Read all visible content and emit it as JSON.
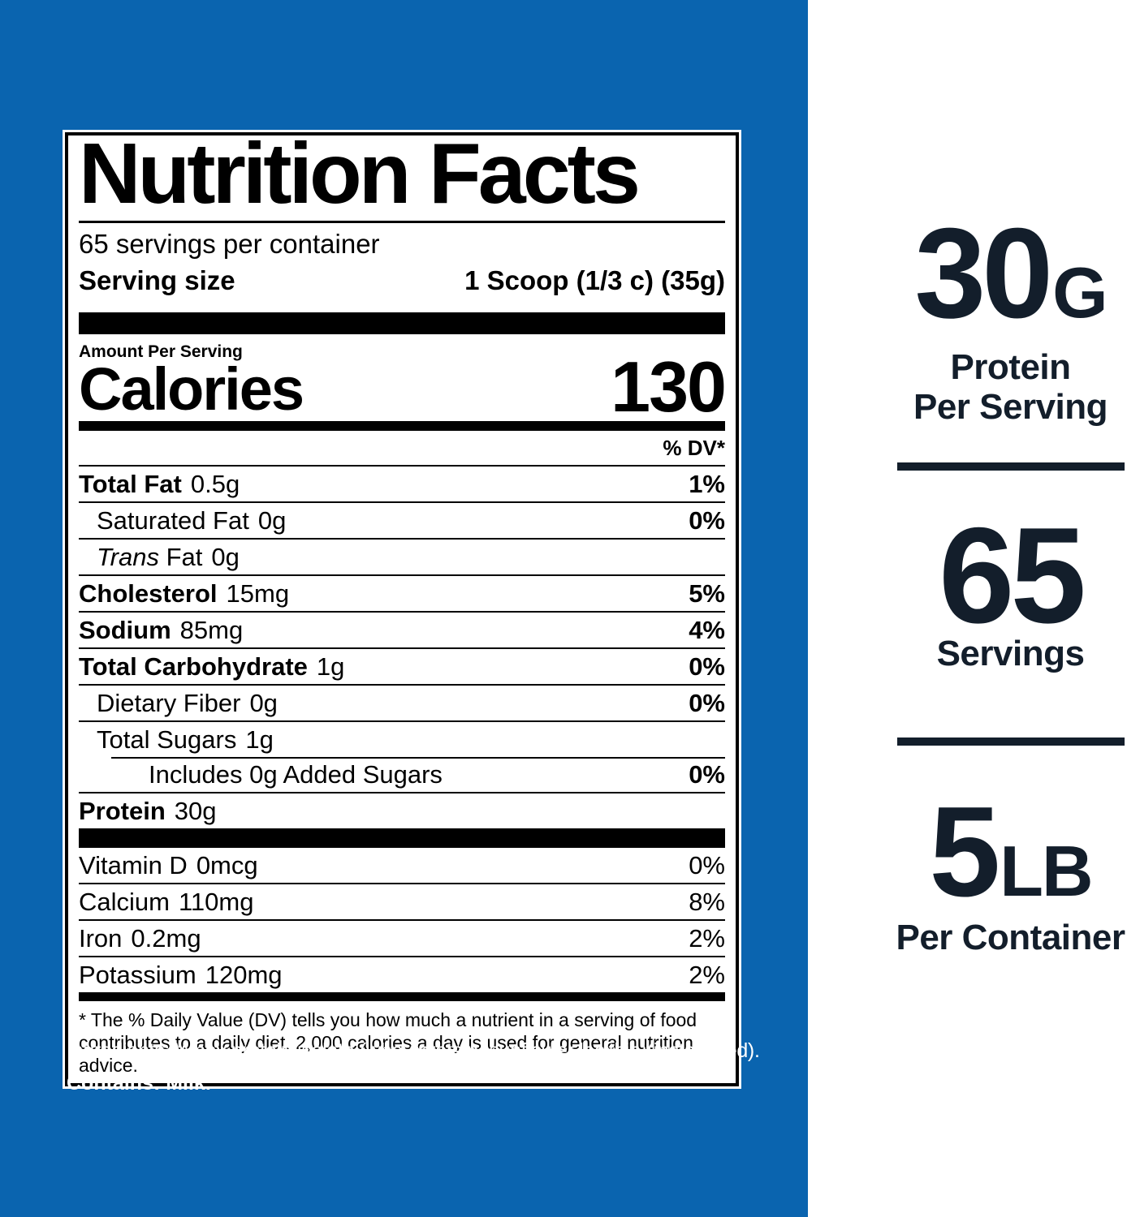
{
  "colors": {
    "background_blue": "#0a64af",
    "highlight_navy": "#131e2b",
    "label_text": "#000000",
    "label_background": "#ffffff"
  },
  "nutrition_label": {
    "title": "Nutrition Facts",
    "servings_per_container": "65 servings per container",
    "serving_size_label": "Serving size",
    "serving_size_value": "1 Scoop (1/3 c) (35g)",
    "amount_per_serving": "Amount Per Serving",
    "calories_label": "Calories",
    "calories_value": "130",
    "dv_header": "% DV*",
    "rows": [
      {
        "name": "Total Fat",
        "amount": "0.5g",
        "dv": "1%"
      },
      {
        "name": "Saturated Fat",
        "amount": "0g",
        "dv": "0%"
      },
      {
        "name_italic": "Trans",
        "name": "Fat",
        "amount": "0g",
        "dv": ""
      },
      {
        "name": "Cholesterol",
        "amount": "15mg",
        "dv": "5%"
      },
      {
        "name": "Sodium",
        "amount": "85mg",
        "dv": "4%"
      },
      {
        "name": "Total Carbohydrate",
        "amount": "1g",
        "dv": "0%"
      },
      {
        "name": "Dietary Fiber",
        "amount": "0g",
        "dv": "0%"
      },
      {
        "name": "Total Sugars",
        "amount": "1g",
        "dv": ""
      },
      {
        "name": "Includes 0g Added Sugars",
        "amount": "",
        "dv": "0%"
      },
      {
        "name": "Protein",
        "amount": "30g",
        "dv": ""
      }
    ],
    "vitamins": [
      {
        "name": "Vitamin D",
        "amount": "0mcg",
        "dv": "0%"
      },
      {
        "name": "Calcium",
        "amount": "110mg",
        "dv": "8%"
      },
      {
        "name": "Iron",
        "amount": "0.2mg",
        "dv": "2%"
      },
      {
        "name": "Potassium",
        "amount": "120mg",
        "dv": "2%"
      }
    ],
    "footnote": "* The % Daily Value (DV) tells you how much a nutrient in a serving of food contributes to a daily diet. 2,000 calories a day is used for general nutrition advice."
  },
  "ingredients": {
    "line1": "Ingredients: Whey protein isolate (whey protein, sunflower lecithin)(instantized).",
    "line2": "Contains: Milk."
  },
  "highlights": [
    {
      "value": "30",
      "unit": "G",
      "labels": [
        "Protein",
        "Per Serving"
      ]
    },
    {
      "value": "65",
      "unit": "",
      "labels": [
        "Servings"
      ]
    },
    {
      "value": "5",
      "unit": "LB",
      "labels": [
        "Per Container"
      ]
    }
  ]
}
